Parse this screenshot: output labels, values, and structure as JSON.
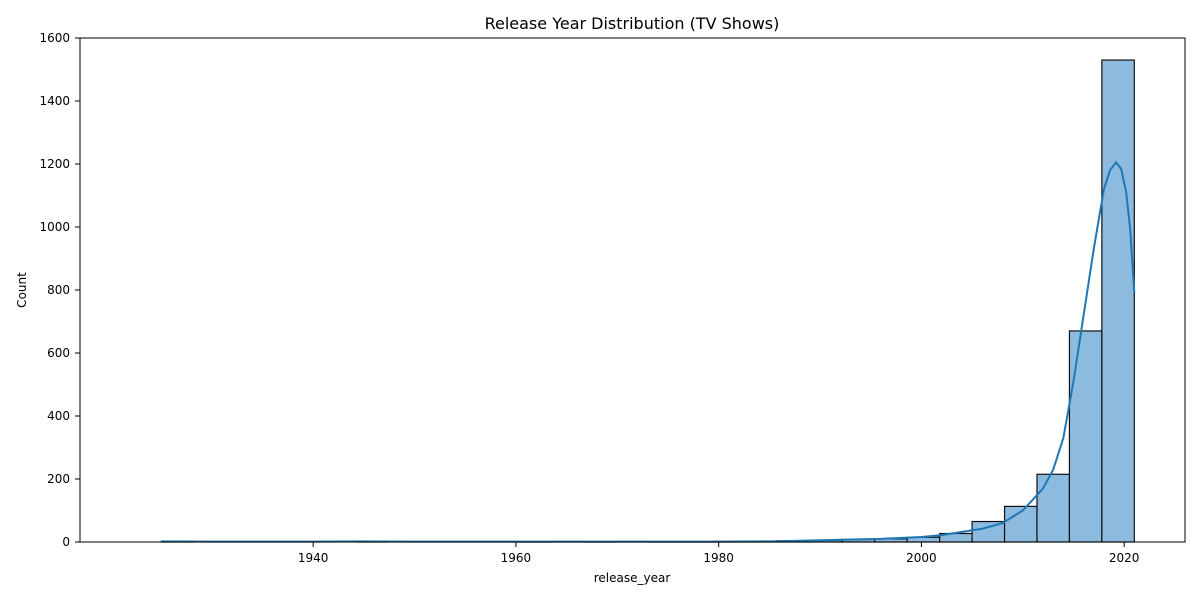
{
  "chart_data": {
    "type": "bar",
    "title": "Release Year Distribution (TV Shows)",
    "xlabel": "release_year",
    "ylabel": "Count",
    "xlim": [
      1917,
      2026
    ],
    "ylim": [
      0,
      1600
    ],
    "xticks": [
      1940,
      1960,
      1980,
      2000,
      2020
    ],
    "yticks": [
      0,
      200,
      400,
      600,
      800,
      1000,
      1200,
      1400,
      1600
    ],
    "bins": [
      {
        "x0": 1925.0,
        "x1": 1928.2,
        "count": 1
      },
      {
        "x0": 1928.2,
        "x1": 1931.4,
        "count": 0
      },
      {
        "x0": 1931.4,
        "x1": 1934.6,
        "count": 0
      },
      {
        "x0": 1934.6,
        "x1": 1937.8,
        "count": 0
      },
      {
        "x0": 1937.8,
        "x1": 1941.0,
        "count": 0
      },
      {
        "x0": 1941.0,
        "x1": 1944.2,
        "count": 0
      },
      {
        "x0": 1944.2,
        "x1": 1947.4,
        "count": 1
      },
      {
        "x0": 1947.4,
        "x1": 1950.6,
        "count": 0
      },
      {
        "x0": 1950.6,
        "x1": 1953.8,
        "count": 0
      },
      {
        "x0": 1953.8,
        "x1": 1957.0,
        "count": 0
      },
      {
        "x0": 1957.0,
        "x1": 1960.2,
        "count": 0
      },
      {
        "x0": 1960.2,
        "x1": 1963.4,
        "count": 1
      },
      {
        "x0": 1963.4,
        "x1": 1966.6,
        "count": 0
      },
      {
        "x0": 1966.6,
        "x1": 1969.8,
        "count": 1
      },
      {
        "x0": 1969.8,
        "x1": 1973.0,
        "count": 0
      },
      {
        "x0": 1973.0,
        "x1": 1976.2,
        "count": 1
      },
      {
        "x0": 1976.2,
        "x1": 1979.4,
        "count": 1
      },
      {
        "x0": 1979.4,
        "x1": 1982.6,
        "count": 2
      },
      {
        "x0": 1982.6,
        "x1": 1985.8,
        "count": 1
      },
      {
        "x0": 1985.8,
        "x1": 1989.0,
        "count": 4
      },
      {
        "x0": 1989.0,
        "x1": 1992.2,
        "count": 6
      },
      {
        "x0": 1992.2,
        "x1": 1995.4,
        "count": 8
      },
      {
        "x0": 1995.4,
        "x1": 1998.6,
        "count": 10
      },
      {
        "x0": 1998.6,
        "x1": 2001.8,
        "count": 15
      },
      {
        "x0": 2001.8,
        "x1": 2005.0,
        "count": 27
      },
      {
        "x0": 2005.0,
        "x1": 2008.2,
        "count": 65
      },
      {
        "x0": 2008.2,
        "x1": 2011.4,
        "count": 113
      },
      {
        "x0": 2011.4,
        "x1": 2014.6,
        "count": 215
      },
      {
        "x0": 2014.6,
        "x1": 2017.8,
        "count": 670
      },
      {
        "x0": 2017.8,
        "x1": 2021.0,
        "count": 1530
      }
    ],
    "kde": {
      "x": [
        1925,
        1930,
        1935,
        1940,
        1945,
        1950,
        1955,
        1960,
        1965,
        1970,
        1975,
        1980,
        1985,
        1988,
        1992,
        1996,
        2000,
        2002,
        2004,
        2006,
        2008,
        2010,
        2012,
        2013,
        2014,
        2015,
        2016,
        2017,
        2018,
        2018.6,
        2019.2,
        2019.7,
        2020.2,
        2020.6,
        2021
      ],
      "y": [
        2,
        1,
        1,
        1,
        2,
        1,
        1,
        1,
        1,
        1,
        1,
        1,
        2,
        4,
        7,
        10,
        16,
        22,
        32,
        42,
        60,
        100,
        170,
        230,
        330,
        510,
        720,
        930,
        1120,
        1180,
        1205,
        1185,
        1110,
        990,
        790
      ]
    },
    "colors": {
      "bar_fill": "#8dbadf",
      "bar_edge": "#111111",
      "kde_line": "#1f77b4"
    },
    "grid": false,
    "legend": "none"
  }
}
